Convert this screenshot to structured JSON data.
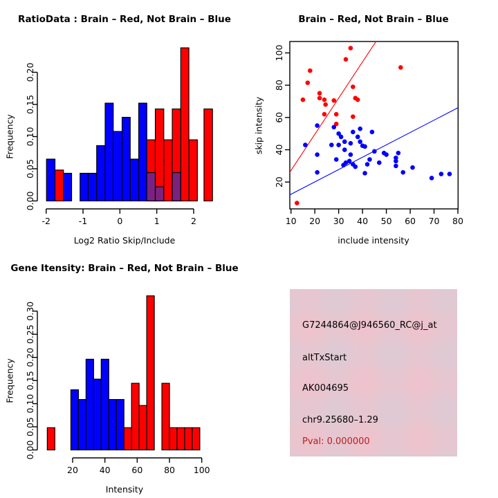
{
  "colors": {
    "red": "#ff0000",
    "blue": "#0000ff",
    "overlap": "#7b2280",
    "axis": "#000000"
  },
  "chart_data": [
    {
      "type": "histogram",
      "title": "RatioData : Brain – Red, Not Brain – Blue",
      "xlabel": "Log2 Ratio Skip/Include",
      "ylabel": "Frequency",
      "x_ticks": [
        -2,
        -1,
        0,
        1,
        2
      ],
      "y_tick_labels": [
        "0.00",
        "0.05",
        "0.10",
        "0.15",
        "0.20"
      ],
      "xlim": [
        -2,
        2.2
      ],
      "ylim": [
        0,
        0.24
      ],
      "grid": false,
      "bars": [
        {
          "x0": -1.99,
          "x1": -1.76,
          "h": 0.065,
          "color": "blue"
        },
        {
          "x0": -1.76,
          "x1": -1.53,
          "h": 0.048,
          "color": "red"
        },
        {
          "x0": -1.53,
          "x1": -1.31,
          "h": 0.043,
          "color": "blue"
        },
        {
          "x0": -1.08,
          "x1": -0.86,
          "h": 0.043,
          "color": "blue"
        },
        {
          "x0": -0.86,
          "x1": -0.63,
          "h": 0.043,
          "color": "blue"
        },
        {
          "x0": -0.63,
          "x1": -0.4,
          "h": 0.086,
          "color": "blue"
        },
        {
          "x0": -0.4,
          "x1": -0.18,
          "h": 0.152,
          "color": "blue"
        },
        {
          "x0": -0.18,
          "x1": 0.06,
          "h": 0.108,
          "color": "blue"
        },
        {
          "x0": 0.06,
          "x1": 0.28,
          "h": 0.13,
          "color": "blue"
        },
        {
          "x0": 0.28,
          "x1": 0.51,
          "h": 0.065,
          "color": "blue"
        },
        {
          "x0": 0.51,
          "x1": 0.73,
          "h": 0.152,
          "color": "blue"
        },
        {
          "x0": 0.73,
          "x1": 0.96,
          "h": 0.095,
          "color": "red",
          "overlap_h": 0.044
        },
        {
          "x0": 0.96,
          "x1": 1.19,
          "h": 0.143,
          "color": "red",
          "overlap_h": 0.022
        },
        {
          "x0": 1.19,
          "x1": 1.42,
          "h": 0.095,
          "color": "red"
        },
        {
          "x0": 1.42,
          "x1": 1.65,
          "h": 0.143,
          "color": "red",
          "overlap_h": 0.044
        },
        {
          "x0": 1.65,
          "x1": 1.87,
          "h": 0.238,
          "color": "red"
        },
        {
          "x0": 1.87,
          "x1": 2.1,
          "h": 0.095,
          "color": "red"
        },
        {
          "x0": 2.28,
          "x1": 2.51,
          "h": 0.143,
          "color": "red"
        }
      ]
    },
    {
      "type": "scatter",
      "title": "Brain – Red, Not Brain – Blue",
      "xlabel": "include intensity",
      "ylabel": "skip intensity",
      "x_ticks": [
        10,
        20,
        30,
        40,
        50,
        60,
        70,
        80
      ],
      "y_ticks": [
        20,
        40,
        60,
        80,
        100
      ],
      "xlim": [
        9.5,
        80.1
      ],
      "ylim": [
        3.4,
        107.1
      ],
      "grid": false,
      "series": [
        {
          "name": "Brain",
          "color": "red",
          "points": [
            [
              12.5,
              7
            ],
            [
              15,
              71
            ],
            [
              17,
              81.5
            ],
            [
              18,
              89
            ],
            [
              22,
              75
            ],
            [
              22,
              72
            ],
            [
              24,
              71
            ],
            [
              24.5,
              68
            ],
            [
              24,
              62
            ],
            [
              28,
              70.5
            ],
            [
              29,
              62
            ],
            [
              29,
              56
            ],
            [
              33,
              96
            ],
            [
              35,
              103
            ],
            [
              36,
              79
            ],
            [
              36,
              60.5
            ],
            [
              37,
              72
            ],
            [
              38,
              71
            ],
            [
              56,
              91
            ]
          ]
        },
        {
          "name": "Not Brain",
          "color": "blue",
          "points": [
            [
              16,
              43
            ],
            [
              21,
              55
            ],
            [
              21,
              37
            ],
            [
              21,
              26
            ],
            [
              27,
              43
            ],
            [
              28,
              54
            ],
            [
              29,
              34
            ],
            [
              30,
              50
            ],
            [
              30,
              43
            ],
            [
              31,
              48
            ],
            [
              32,
              30.5
            ],
            [
              32.5,
              45
            ],
            [
              32.5,
              40
            ],
            [
              33,
              32
            ],
            [
              34.5,
              33
            ],
            [
              35,
              44
            ],
            [
              35,
              37
            ],
            [
              36,
              51
            ],
            [
              36,
              31
            ],
            [
              37,
              29.5
            ],
            [
              38,
              48
            ],
            [
              39,
              53
            ],
            [
              39,
              45
            ],
            [
              40,
              42.5
            ],
            [
              41,
              42
            ],
            [
              41,
              25.5
            ],
            [
              42,
              31
            ],
            [
              43,
              34
            ],
            [
              44,
              51
            ],
            [
              45,
              39
            ],
            [
              47,
              32
            ],
            [
              49,
              38
            ],
            [
              50,
              37
            ],
            [
              54,
              35
            ],
            [
              54,
              33
            ],
            [
              54,
              30
            ],
            [
              55,
              38
            ],
            [
              57,
              26
            ],
            [
              61,
              29
            ],
            [
              69,
              22.5
            ],
            [
              73,
              25
            ],
            [
              76.5,
              25
            ]
          ]
        }
      ],
      "fit_lines": [
        {
          "name": "brain-fit",
          "color": "red",
          "slope": 2.24,
          "intercept": 4.8
        },
        {
          "name": "not-brain-fit",
          "color": "blue",
          "slope": 0.765,
          "intercept": 4.8
        }
      ]
    },
    {
      "type": "histogram",
      "title": "Gene Itensity: Brain – Red, Not Brain – Blue",
      "xlabel": "Intensity",
      "ylabel": "Frequency",
      "x_ticks": [
        20,
        40,
        60,
        80,
        100
      ],
      "y_tick_labels": [
        "0.00",
        "0.05",
        "0.10",
        "0.15",
        "0.20",
        "0.25",
        "0.30"
      ],
      "xlim": [
        4,
        103
      ],
      "ylim": [
        0,
        0.335
      ],
      "grid": false,
      "bars": [
        {
          "x0": 4.3,
          "x1": 9.0,
          "h": 0.048,
          "color": "red"
        },
        {
          "x0": 18.9,
          "x1": 23.6,
          "h": 0.13,
          "color": "blue"
        },
        {
          "x0": 23.6,
          "x1": 28.3,
          "h": 0.109,
          "color": "blue"
        },
        {
          "x0": 28.3,
          "x1": 33.0,
          "h": 0.196,
          "color": "blue"
        },
        {
          "x0": 33.0,
          "x1": 37.7,
          "h": 0.153,
          "color": "blue"
        },
        {
          "x0": 37.7,
          "x1": 42.4,
          "h": 0.196,
          "color": "blue"
        },
        {
          "x0": 42.4,
          "x1": 47.1,
          "h": 0.109,
          "color": "blue"
        },
        {
          "x0": 47.1,
          "x1": 51.8,
          "h": 0.109,
          "color": "blue"
        },
        {
          "x0": 51.8,
          "x1": 56.5,
          "h": 0.048,
          "color": "red"
        },
        {
          "x0": 56.5,
          "x1": 61.2,
          "h": 0.144,
          "color": "red"
        },
        {
          "x0": 61.2,
          "x1": 65.9,
          "h": 0.096,
          "color": "red"
        },
        {
          "x0": 65.9,
          "x1": 70.6,
          "h": 0.333,
          "color": "red"
        },
        {
          "x0": 75.3,
          "x1": 80.0,
          "h": 0.144,
          "color": "red"
        },
        {
          "x0": 80.0,
          "x1": 84.7,
          "h": 0.048,
          "color": "red"
        },
        {
          "x0": 84.7,
          "x1": 89.4,
          "h": 0.048,
          "color": "red"
        },
        {
          "x0": 89.4,
          "x1": 94.1,
          "h": 0.048,
          "color": "red"
        },
        {
          "x0": 94.1,
          "x1": 98.8,
          "h": 0.048,
          "color": "red"
        }
      ]
    }
  ],
  "info_box": {
    "probe_id": "G7244864@J946560_RC@j_at",
    "event_type": "altTxStart",
    "accession": "AK004695",
    "locus": "chr9.25680–1.29",
    "pval": "Pval: 0.000000",
    "background": "#eec3cd",
    "pval_color": "#b22222"
  }
}
